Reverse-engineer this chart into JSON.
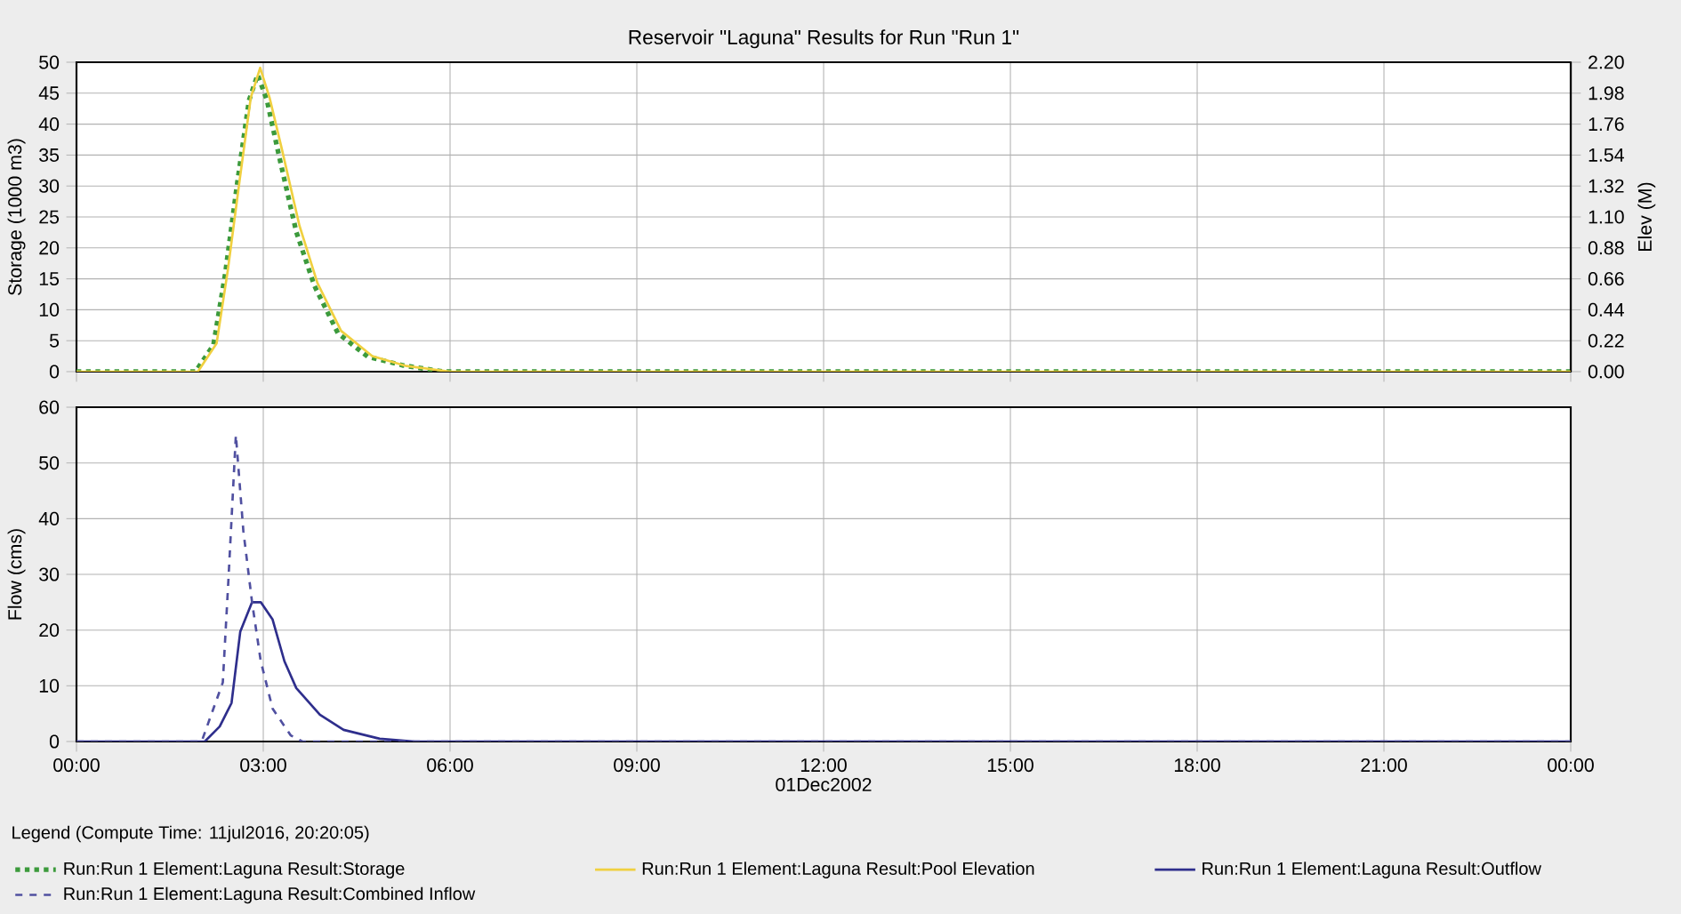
{
  "chart_data": [
    {
      "type": "line",
      "title": "Reservoir \"Laguna\" Results for Run \"Run 1\"",
      "ylabel": "Storage (1000 m3)",
      "y2label": "Elev (M)",
      "xlim": [
        0,
        24
      ],
      "xticks": [
        {
          "value": 0,
          "label": null
        },
        {
          "value": 3,
          "label": null
        },
        {
          "value": 6,
          "label": null
        },
        {
          "value": 9,
          "label": null
        },
        {
          "value": 12,
          "label": null
        },
        {
          "value": 15,
          "label": null
        },
        {
          "value": 18,
          "label": null
        },
        {
          "value": 21,
          "label": null
        },
        {
          "value": 24,
          "label": null
        }
      ],
      "ylim": [
        0,
        50
      ],
      "yticks": [
        0,
        5,
        10,
        15,
        20,
        25,
        30,
        35,
        40,
        45,
        50
      ],
      "y2lim": [
        0,
        2.2
      ],
      "y2ticks": [
        {
          "value": 0,
          "label": "0.00"
        },
        0.22,
        0.44,
        0.66,
        0.88,
        {
          "value": 1.1,
          "label": "1.10"
        },
        1.32,
        1.54,
        1.76,
        1.98,
        {
          "value": 2.2,
          "label": "2.20"
        }
      ],
      "grid": true,
      "tick_labels": "y",
      "series": [
        {
          "name": "Run:Run 1 Element:Laguna Result:Storage",
          "color": "#3c9a3c",
          "line_style": "dotted",
          "x": [
            0,
            1.91,
            2.2,
            2.39,
            2.58,
            2.77,
            2.91,
            3.06,
            3.25,
            3.53,
            3.82,
            4.2,
            4.68,
            5.25,
            5.9,
            24
          ],
          "values": [
            0,
            0,
            4.3,
            15.9,
            30.3,
            43.8,
            48,
            43.8,
            35,
            22.6,
            13.9,
            6.2,
            2.4,
            1,
            0,
            0
          ]
        },
        {
          "name": "Run:Run 1 Element:Laguna Result:Pool Elevation",
          "color": "#f0d040",
          "axis": "y2",
          "x": [
            0,
            1.95,
            2.25,
            2.43,
            2.62,
            2.8,
            2.95,
            3.1,
            3.3,
            3.58,
            3.87,
            4.25,
            4.75,
            5.3,
            6.0,
            24
          ],
          "values": [
            0,
            0,
            0.2,
            0.72,
            1.36,
            1.95,
            2.16,
            1.95,
            1.58,
            1.04,
            0.63,
            0.29,
            0.11,
            0.04,
            0,
            0
          ]
        }
      ]
    },
    {
      "type": "line",
      "ylabel": "Flow (cms)",
      "xlabel": "01Dec2002",
      "legend_title": "Legend (Compute Time: 11jul2016, 20:20:05)",
      "xlim": [
        0,
        24
      ],
      "xticks": [
        {
          "value": 0,
          "label": "00:00"
        },
        {
          "value": 3,
          "label": "03:00"
        },
        {
          "value": 6,
          "label": "06:00"
        },
        {
          "value": 9,
          "label": "09:00"
        },
        {
          "value": 12,
          "label": "12:00"
        },
        {
          "value": 15,
          "label": "15:00"
        },
        {
          "value": 18,
          "label": "18:00"
        },
        {
          "value": 21,
          "label": "21:00"
        },
        {
          "value": 24,
          "label": "00:00"
        }
      ],
      "ylim": [
        0,
        60
      ],
      "yticks": [
        0,
        10,
        20,
        30,
        40,
        50,
        60
      ],
      "grid": true,
      "legend": "bottom",
      "series": [
        {
          "name": "Run:Run 1 Element:Laguna Result:Outflow",
          "color": "#2e2e8c",
          "line_style": "solid",
          "x": [
            0,
            2.06,
            2.3,
            2.49,
            2.63,
            2.82,
            2.96,
            3.15,
            3.34,
            3.53,
            3.91,
            4.29,
            4.87,
            5.43,
            24
          ],
          "values": [
            0,
            0,
            2.7,
            6.9,
            19.7,
            25,
            25,
            21.9,
            14.4,
            9.6,
            4.8,
            2.1,
            0.5,
            0,
            0
          ]
        },
        {
          "name": "Run:Run 1 Element:Laguna Result:Combined Inflow",
          "color": "#5050a0",
          "line_style": "dashed",
          "x": [
            0,
            2.01,
            2.35,
            2.44,
            2.56,
            2.68,
            2.82,
            2.96,
            3.15,
            3.44,
            3.63,
            24
          ],
          "values": [
            0,
            0,
            10.6,
            29,
            55,
            37.8,
            25,
            14.4,
            5.9,
            1.1,
            0,
            0
          ]
        }
      ]
    }
  ]
}
